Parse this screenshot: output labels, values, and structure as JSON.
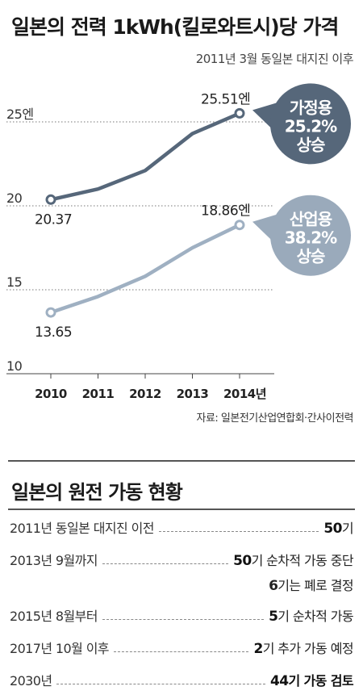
{
  "header": {
    "title": "일본의 전력 1kWh(킬로와트시)당 가격",
    "subtitle": "2011년 3월 동일본 대지진 이후",
    "source": "자료: 일본전기산업연합회·간사이전력"
  },
  "chart_data": {
    "type": "line",
    "x": [
      "2010",
      "2011",
      "2012",
      "2013",
      "2014년"
    ],
    "ylim": [
      10,
      27
    ],
    "yticks": [
      {
        "value": 10,
        "label": "10"
      },
      {
        "value": 15,
        "label": "15"
      },
      {
        "value": 20,
        "label": "20"
      },
      {
        "value": 25,
        "label": "25엔"
      }
    ],
    "series": [
      {
        "name": "가정용",
        "values": [
          20.37,
          21.0,
          22.1,
          24.3,
          25.51
        ],
        "color": "#56677a",
        "start_label": "20.37",
        "end_label": "25.51엔",
        "badge": {
          "line1": "가정용",
          "line2": "25.2%",
          "line3": "상승",
          "color": "#56677a"
        }
      },
      {
        "name": "산업용",
        "values": [
          13.65,
          14.6,
          15.8,
          17.5,
          18.86
        ],
        "color": "#9fb0c2",
        "start_label": "13.65",
        "end_label": "18.86엔",
        "badge": {
          "line1": "산업용",
          "line2": "38.2%",
          "line3": "상승",
          "color": "#9aaabb"
        }
      }
    ],
    "grid": true,
    "legend": "none"
  },
  "nuclear": {
    "title": "일본의 원전 가동 현황",
    "rows": [
      {
        "label": "2011년 동일본 대지진 이전",
        "num": "50",
        "text": "기"
      },
      {
        "label": "2013년 9월까지",
        "num": "50",
        "text": "기 순차적 가동 중단",
        "extra_num": "6",
        "extra_text": "기는 폐로 결정"
      },
      {
        "label": "2015년 8월부터",
        "num": "5",
        "text": "기 순차적 가동"
      },
      {
        "label": "2017년 10월 이후",
        "num": "2",
        "text": "기 추가 가동 예정"
      },
      {
        "label": "2030년",
        "num": "44",
        "text": "기 가동 검토",
        "bold": true
      }
    ]
  }
}
